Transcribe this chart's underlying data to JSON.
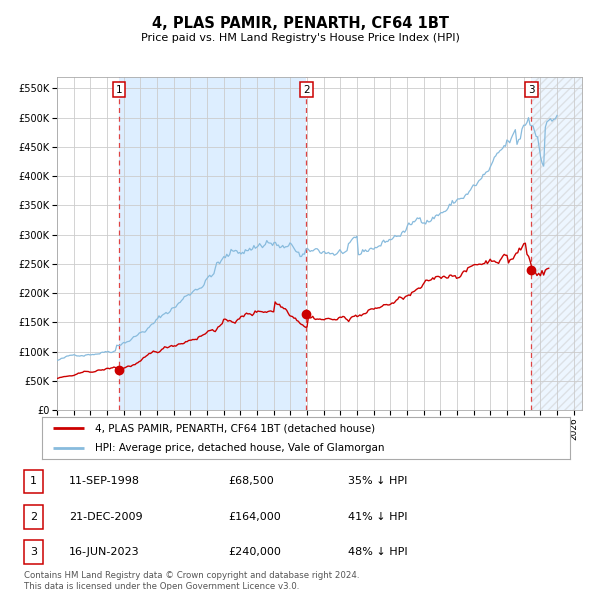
{
  "title": "4, PLAS PAMIR, PENARTH, CF64 1BT",
  "subtitle": "Price paid vs. HM Land Registry's House Price Index (HPI)",
  "ylim": [
    0,
    570000
  ],
  "yticks": [
    0,
    50000,
    100000,
    150000,
    200000,
    250000,
    300000,
    350000,
    400000,
    450000,
    500000,
    550000
  ],
  "ytick_labels": [
    "£0",
    "£50K",
    "£100K",
    "£150K",
    "£200K",
    "£250K",
    "£300K",
    "£350K",
    "£400K",
    "£450K",
    "£500K",
    "£550K"
  ],
  "xstart": 1995.0,
  "xend": 2026.5,
  "chart_bg": "#ffffff",
  "span_color": "#ddeeff",
  "hatch_color": "#e8e8e8",
  "hpi_color": "#88bbdd",
  "price_color": "#cc0000",
  "vline_color": "#dd4444",
  "grid_color": "#cccccc",
  "sale1_date": 1998.71,
  "sale1_price": 68500,
  "sale2_date": 2009.97,
  "sale2_price": 164000,
  "sale3_date": 2023.46,
  "sale3_price": 240000,
  "legend_label_red": "4, PLAS PAMIR, PENARTH, CF64 1BT (detached house)",
  "legend_label_blue": "HPI: Average price, detached house, Vale of Glamorgan",
  "table_rows": [
    [
      "1",
      "11-SEP-1998",
      "£68,500",
      "35% ↓ HPI"
    ],
    [
      "2",
      "21-DEC-2009",
      "£164,000",
      "41% ↓ HPI"
    ],
    [
      "3",
      "16-JUN-2023",
      "£240,000",
      "48% ↓ HPI"
    ]
  ],
  "footer": "Contains HM Land Registry data © Crown copyright and database right 2024.\nThis data is licensed under the Open Government Licence v3.0."
}
